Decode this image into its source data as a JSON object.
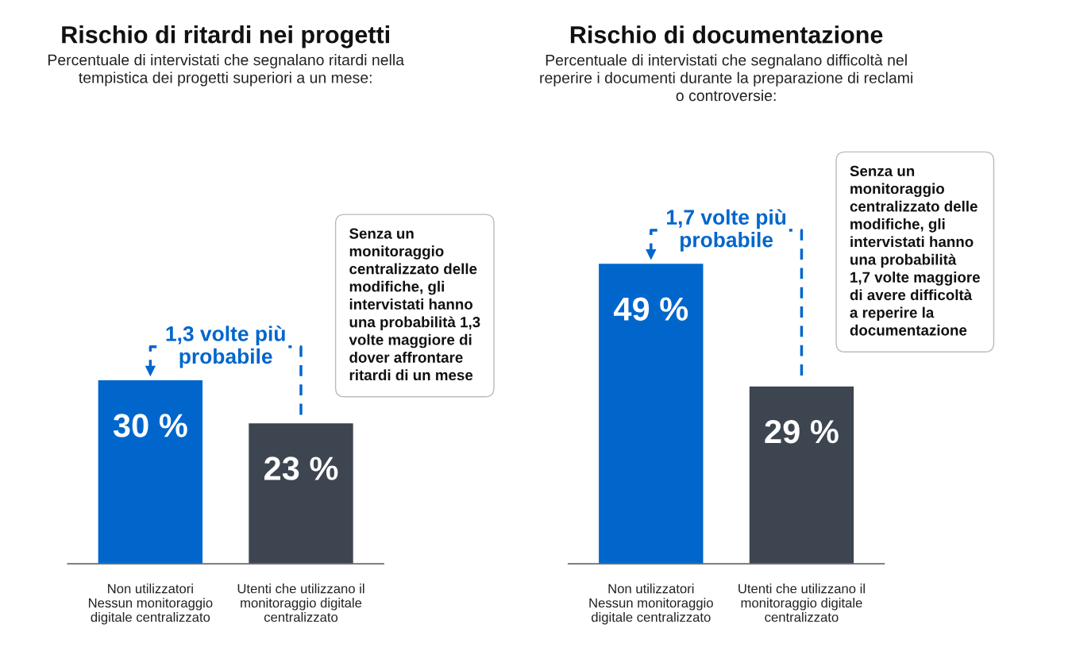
{
  "chart_data": [
    {
      "type": "bar",
      "title": "Rischio di ritardi nei progetti",
      "subtitle": "Percentuale di intervistati che segnalano ritardi nella\ntempistica dei progetti superiori a un mese:",
      "categories": [
        "Non utilizzatori\nNessun monitoraggio\ndigitale centralizzato",
        "Utenti che utilizzano il\nmonitoraggio digitale\ncentralizzato"
      ],
      "values": [
        30,
        23
      ],
      "colors": [
        "#0066cc",
        "#3d4550"
      ],
      "value_labels": [
        "30 %",
        "23 %"
      ],
      "annotations": [
        "1,3 volte più\nprobabile",
        "Senza un\nmonitoraggio\ncentralizzato delle\nmodifiche, gli\nintervistati hanno\nuna probabilità 1,3\nvolte maggiore di\ndover affrontare\nritardi di un mese"
      ]
    },
    {
      "type": "bar",
      "title": "Rischio di documentazione",
      "subtitle": "Percentuale di intervistati che segnalano difficoltà nel\nreperire i documenti durante la preparazione di reclami\no controversie:",
      "categories": [
        "Non utilizzatori\nNessun monitoraggio\ndigitale centralizzato",
        "Utenti che utilizzano il\nmonitoraggio digitale\ncentralizzato"
      ],
      "values": [
        49,
        29
      ],
      "colors": [
        "#0066cc",
        "#3d4550"
      ],
      "value_labels": [
        "49 %",
        "29 %"
      ],
      "annotations": [
        "1,7 volte più\nprobabile",
        "Senza un\nmonitoraggio\ncentralizzato delle\nmodifiche, gli\nintervistati hanno\nuna probabilità\n1,7 volte maggiore\ndi avere difficoltà\na reperire la\ndocumentazione"
      ]
    }
  ]
}
